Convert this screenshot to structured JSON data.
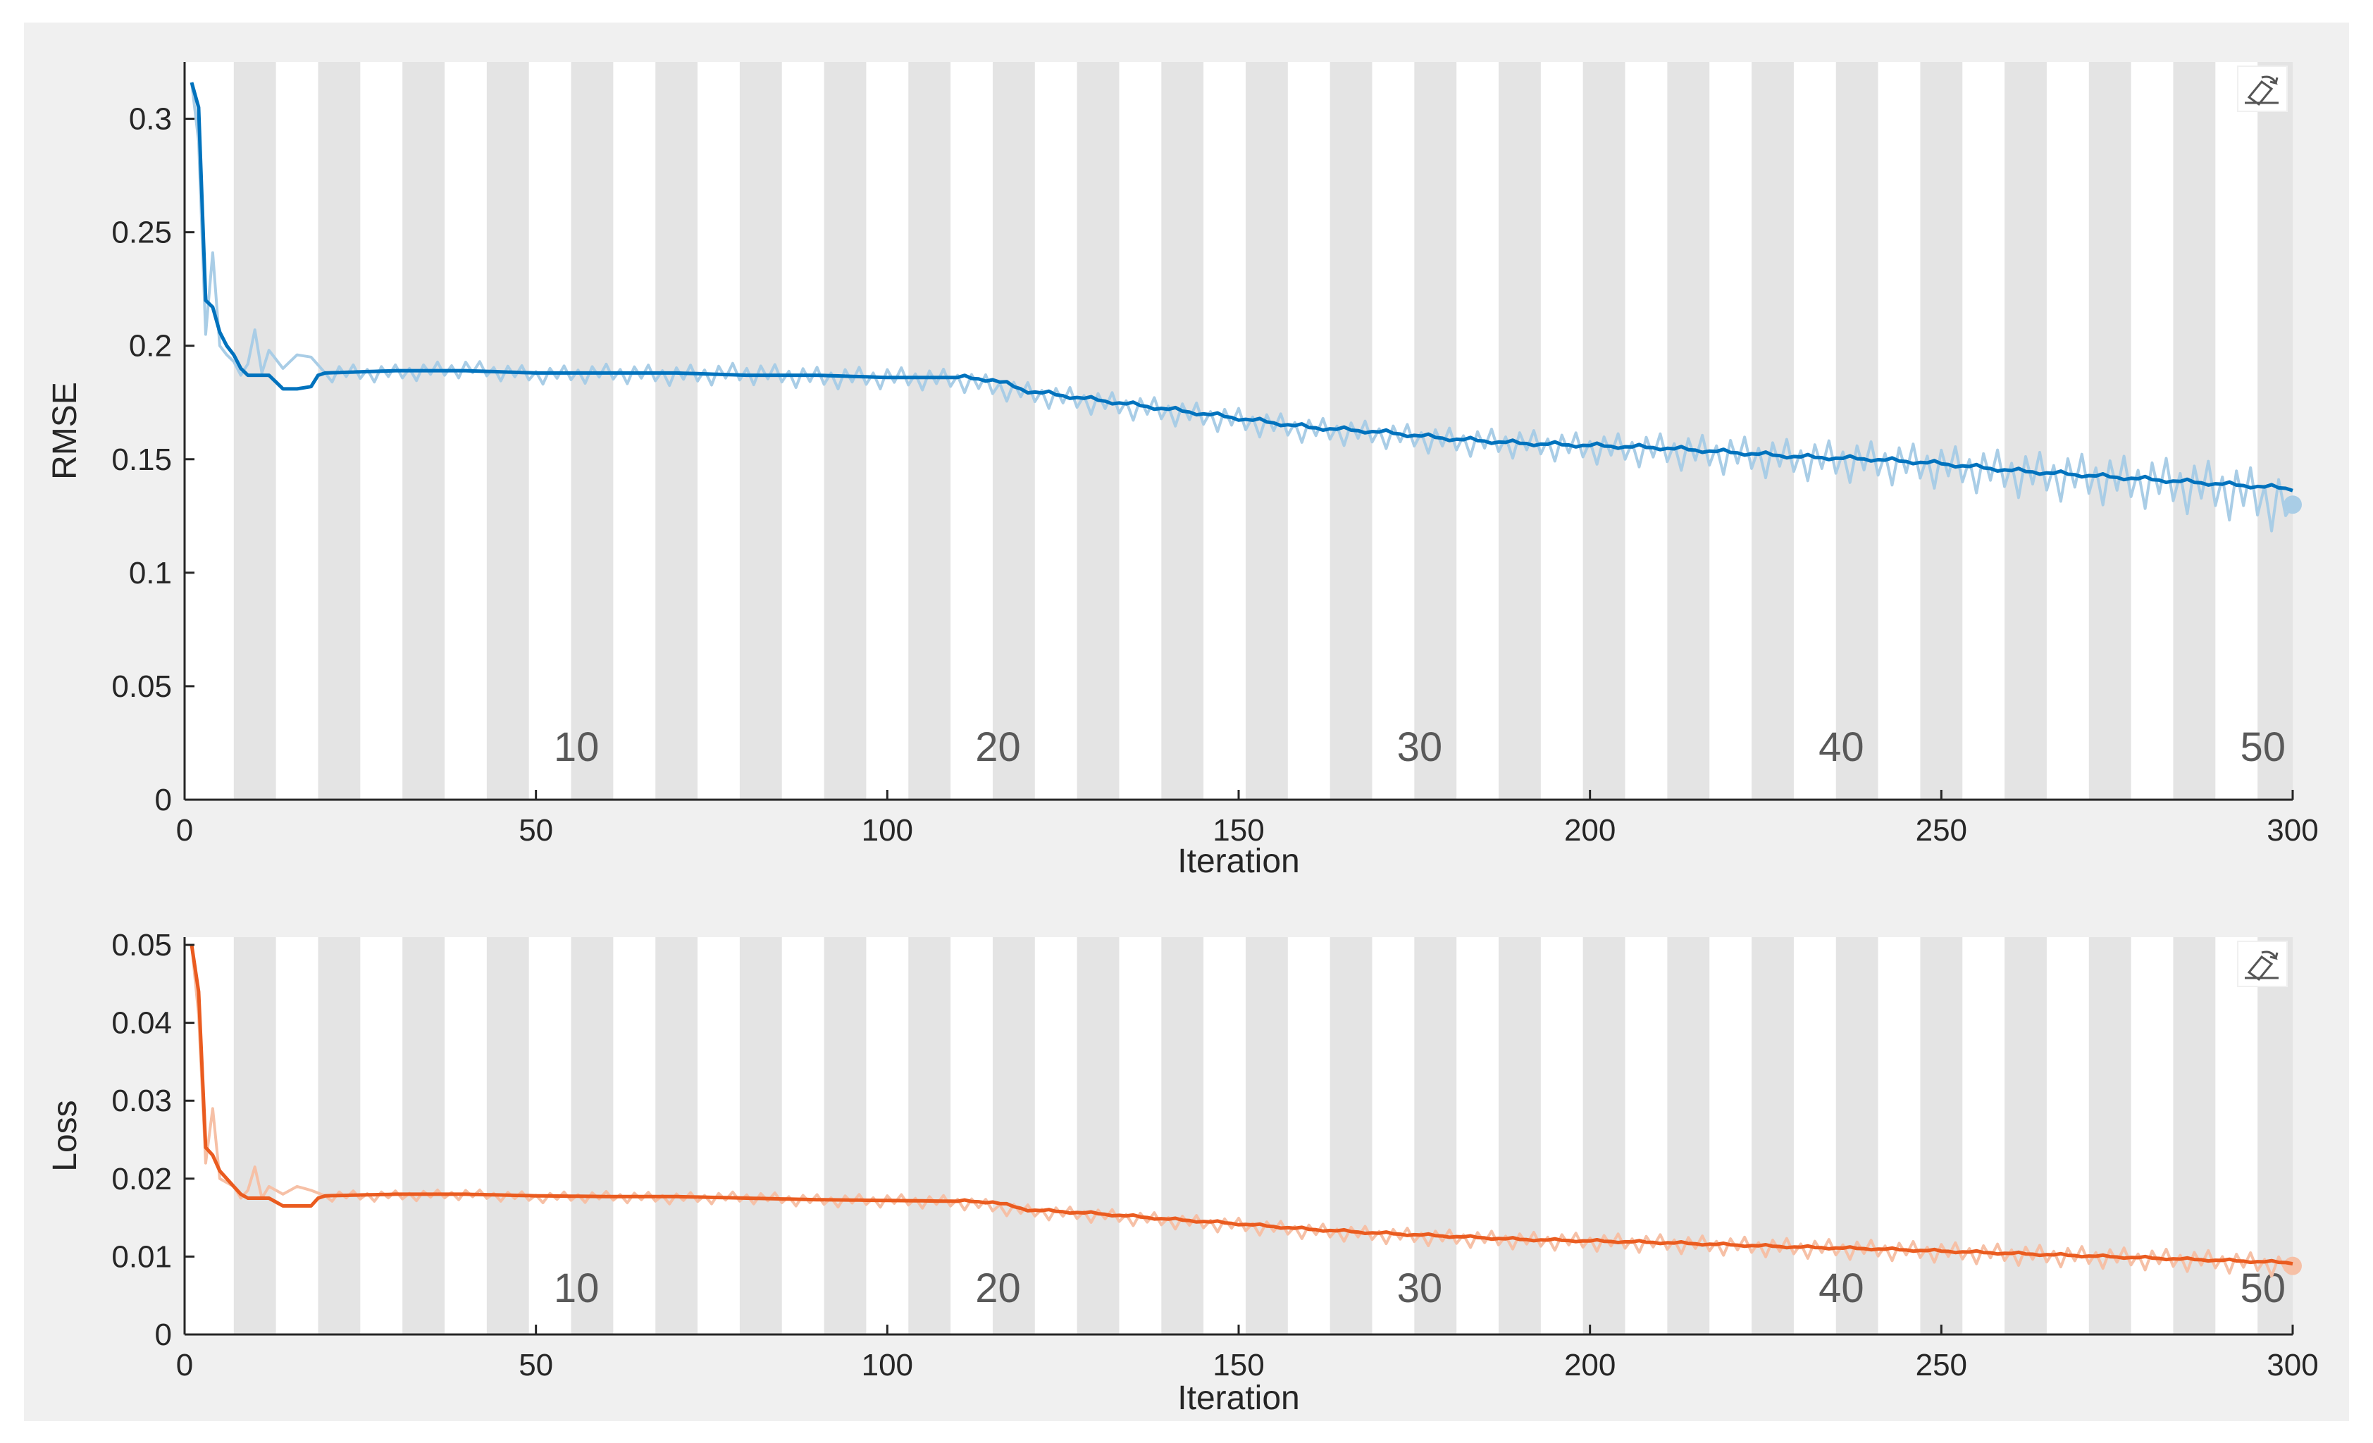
{
  "chart_data": [
    {
      "type": "line",
      "ylabel": "RMSE",
      "xlabel": "Iteration",
      "xlim": [
        0,
        300
      ],
      "ylim": [
        0,
        0.325
      ],
      "xticks": [
        0,
        50,
        100,
        150,
        200,
        250,
        300
      ],
      "xtick_labels": [
        "0",
        "50",
        "100",
        "150",
        "200",
        "250",
        "300"
      ],
      "yticks": [
        0,
        0.05,
        0.1,
        0.15,
        0.2,
        0.25,
        0.3
      ],
      "ytick_labels": [
        "0",
        "0.05",
        "0.1",
        "0.15",
        "0.2",
        "0.25",
        "0.3"
      ],
      "epoch_labels": [
        "10",
        "20",
        "30",
        "40",
        "50"
      ],
      "epoch_label_iterations": [
        60,
        120,
        180,
        240,
        300
      ],
      "epoch_bands": {
        "iterations_per_epoch": 6,
        "first_shaded_start": 7,
        "shaded_width": 6,
        "count": 50
      },
      "grid": false,
      "series": [
        {
          "role": "smoothed",
          "color": "#0072bd",
          "x": [
            1,
            2,
            3,
            4,
            5,
            6,
            7,
            8,
            9,
            10,
            12,
            14,
            16,
            18,
            19,
            20,
            30,
            40,
            50,
            60,
            70,
            80,
            90,
            100,
            105,
            110,
            115,
            120,
            130,
            140,
            150,
            160,
            170,
            180,
            190,
            200,
            210,
            220,
            230,
            240,
            250,
            260,
            270,
            280,
            290,
            300
          ],
          "y": [
            0.316,
            0.305,
            0.22,
            0.217,
            0.206,
            0.2,
            0.196,
            0.19,
            0.187,
            0.187,
            0.187,
            0.181,
            0.181,
            0.182,
            0.187,
            0.188,
            0.189,
            0.189,
            0.188,
            0.188,
            0.188,
            0.187,
            0.187,
            0.186,
            0.186,
            0.186,
            0.185,
            0.18,
            0.176,
            0.172,
            0.168,
            0.164,
            0.162,
            0.159,
            0.157,
            0.156,
            0.155,
            0.153,
            0.151,
            0.15,
            0.148,
            0.145,
            0.143,
            0.141,
            0.139,
            0.137
          ]
        },
        {
          "role": "raw",
          "color": "#a9cde6",
          "x": [
            1,
            2,
            3,
            4,
            5,
            6,
            7,
            8,
            9,
            10,
            11,
            12,
            14,
            16,
            18,
            20,
            30,
            40,
            50,
            60,
            70,
            80,
            90,
            100,
            110,
            120,
            130,
            140,
            150,
            160,
            170,
            180,
            190,
            200,
            210,
            220,
            230,
            240,
            250,
            260,
            270,
            280,
            290,
            300
          ],
          "y": [
            0.316,
            0.29,
            0.205,
            0.241,
            0.2,
            0.196,
            0.193,
            0.187,
            0.192,
            0.207,
            0.188,
            0.198,
            0.19,
            0.196,
            0.195,
            0.188,
            0.188,
            0.19,
            0.187,
            0.188,
            0.187,
            0.188,
            0.186,
            0.186,
            0.185,
            0.179,
            0.175,
            0.171,
            0.167,
            0.163,
            0.161,
            0.158,
            0.157,
            0.155,
            0.154,
            0.152,
            0.15,
            0.149,
            0.147,
            0.144,
            0.142,
            0.14,
            0.137,
            0.13
          ],
          "oscillation_amplitude": [
            0.004,
            0.004,
            0.005,
            0.005,
            0.006,
            0.006,
            0.007,
            0.009,
            0.01,
            0.012,
            0.014
          ],
          "oscillation_at_iteration": [
            20,
            50,
            80,
            110,
            140,
            170,
            200,
            220,
            250,
            280,
            300
          ]
        }
      ]
    },
    {
      "type": "line",
      "ylabel": "Loss",
      "xlabel": "Iteration",
      "xlim": [
        0,
        300
      ],
      "ylim": [
        0,
        0.051
      ],
      "xticks": [
        0,
        50,
        100,
        150,
        200,
        250,
        300
      ],
      "xtick_labels": [
        "0",
        "50",
        "100",
        "150",
        "200",
        "250",
        "300"
      ],
      "yticks": [
        0,
        0.01,
        0.02,
        0.03,
        0.04,
        0.05
      ],
      "ytick_labels": [
        "0",
        "0.01",
        "0.02",
        "0.03",
        "0.04",
        "0.05"
      ],
      "epoch_labels": [
        "10",
        "20",
        "30",
        "40",
        "50"
      ],
      "epoch_label_iterations": [
        60,
        120,
        180,
        240,
        300
      ],
      "epoch_bands": {
        "iterations_per_epoch": 6,
        "first_shaded_start": 7,
        "shaded_width": 6,
        "count": 50
      },
      "grid": false,
      "series": [
        {
          "role": "smoothed",
          "color": "#ea5b1f",
          "x": [
            1,
            2,
            3,
            4,
            5,
            6,
            7,
            8,
            9,
            10,
            12,
            14,
            16,
            18,
            19,
            20,
            30,
            40,
            50,
            60,
            70,
            80,
            90,
            100,
            110,
            115,
            120,
            130,
            140,
            150,
            160,
            170,
            180,
            190,
            200,
            210,
            220,
            230,
            240,
            250,
            260,
            270,
            280,
            290,
            300
          ],
          "y": [
            0.05,
            0.044,
            0.024,
            0.023,
            0.021,
            0.02,
            0.019,
            0.018,
            0.0175,
            0.0175,
            0.0175,
            0.0165,
            0.0165,
            0.0165,
            0.0175,
            0.0178,
            0.018,
            0.018,
            0.0178,
            0.0177,
            0.0177,
            0.0175,
            0.0173,
            0.0172,
            0.0171,
            0.017,
            0.016,
            0.0155,
            0.0148,
            0.0142,
            0.0135,
            0.013,
            0.0126,
            0.0122,
            0.012,
            0.0118,
            0.0115,
            0.0112,
            0.011,
            0.0107,
            0.0104,
            0.0101,
            0.0098,
            0.0095,
            0.0092
          ]
        },
        {
          "role": "raw",
          "color": "#f6c0a6",
          "x": [
            1,
            2,
            3,
            4,
            5,
            6,
            7,
            8,
            9,
            10,
            11,
            12,
            14,
            16,
            18,
            20,
            30,
            40,
            50,
            60,
            70,
            80,
            90,
            100,
            110,
            120,
            130,
            140,
            150,
            160,
            170,
            180,
            190,
            200,
            210,
            220,
            230,
            240,
            250,
            260,
            270,
            280,
            290,
            300
          ],
          "y": [
            0.05,
            0.041,
            0.022,
            0.029,
            0.02,
            0.0195,
            0.019,
            0.0175,
            0.0185,
            0.0215,
            0.0175,
            0.019,
            0.018,
            0.019,
            0.0185,
            0.0178,
            0.0178,
            0.018,
            0.0176,
            0.0177,
            0.0175,
            0.0176,
            0.0172,
            0.0172,
            0.017,
            0.0158,
            0.0153,
            0.0146,
            0.014,
            0.0133,
            0.0128,
            0.0124,
            0.0121,
            0.0119,
            0.0117,
            0.0114,
            0.0111,
            0.0109,
            0.0106,
            0.0103,
            0.01,
            0.0097,
            0.0094,
            0.0088
          ],
          "oscillation_amplitude": [
            0.0007,
            0.0007,
            0.0008,
            0.0009,
            0.001,
            0.0011,
            0.0012,
            0.0013,
            0.0014,
            0.0015
          ],
          "oscillation_at_iteration": [
            20,
            50,
            80,
            110,
            140,
            170,
            200,
            230,
            260,
            300
          ]
        }
      ]
    }
  ]
}
